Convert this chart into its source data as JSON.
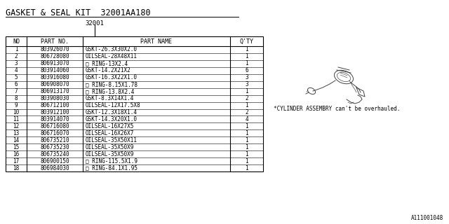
{
  "title": "GASKET & SEAL KIT  32001AA180",
  "subtitle": "32001",
  "bg_color": "#ffffff",
  "border_color": "#000000",
  "font_color": "#000000",
  "table_headers": [
    "NO",
    "PART NO.",
    "PART NAME",
    "Q'TY"
  ],
  "rows": [
    [
      "1",
      "803926070",
      "GSKT-26.3X30X2.0",
      "1"
    ],
    [
      "2",
      "806728080",
      "OILSEAL-28X48X11",
      "1"
    ],
    [
      "3",
      "806913070",
      "□ RING-13X2.4",
      "1"
    ],
    [
      "4",
      "803914060",
      "GSKT-14.2X21X2",
      "6"
    ],
    [
      "5",
      "803916080",
      "GSKT-16.3X22X1.0",
      "3"
    ],
    [
      "6",
      "806908070",
      "□ RING-8.15X1.78",
      "3"
    ],
    [
      "7",
      "806913170",
      "□ RING-13.8X2.4",
      "1"
    ],
    [
      "8",
      "803908030",
      "GSKT-8.3X14X1.4",
      "2"
    ],
    [
      "9",
      "806712100",
      "OILSEAL-12X17.5X8",
      "1"
    ],
    [
      "10",
      "803912100",
      "GSKT-12.3X18X1.4",
      "2"
    ],
    [
      "11",
      "803914070",
      "GSKT-14.3X20X1.0",
      "4"
    ],
    [
      "12",
      "806716080",
      "OILSEAL-16X27X5",
      "1"
    ],
    [
      "13",
      "806716070",
      "OILSEAL-16X26X7",
      "1"
    ],
    [
      "14",
      "806735210",
      "OILSEAL-35X50X11",
      "1"
    ],
    [
      "15",
      "806735230",
      "OILSEAL-35X50X9",
      "1"
    ],
    [
      "16",
      "806735240",
      "OILSEAL-35X50X9",
      "1"
    ],
    [
      "17",
      "806900150",
      "□ RING-115.5X1.9",
      "1"
    ],
    [
      "18",
      "806984030",
      "□ RING-84.1X1.95",
      "1"
    ]
  ],
  "note": "*CYLINDER ASSEMBRY can't be overhauled.",
  "figure_label": "A111001048",
  "title_fontsize": 8.5,
  "subtitle_fontsize": 6.5,
  "header_fontsize": 6.0,
  "data_fontsize": 5.5,
  "note_fontsize": 5.5,
  "label_fontsize": 5.5
}
